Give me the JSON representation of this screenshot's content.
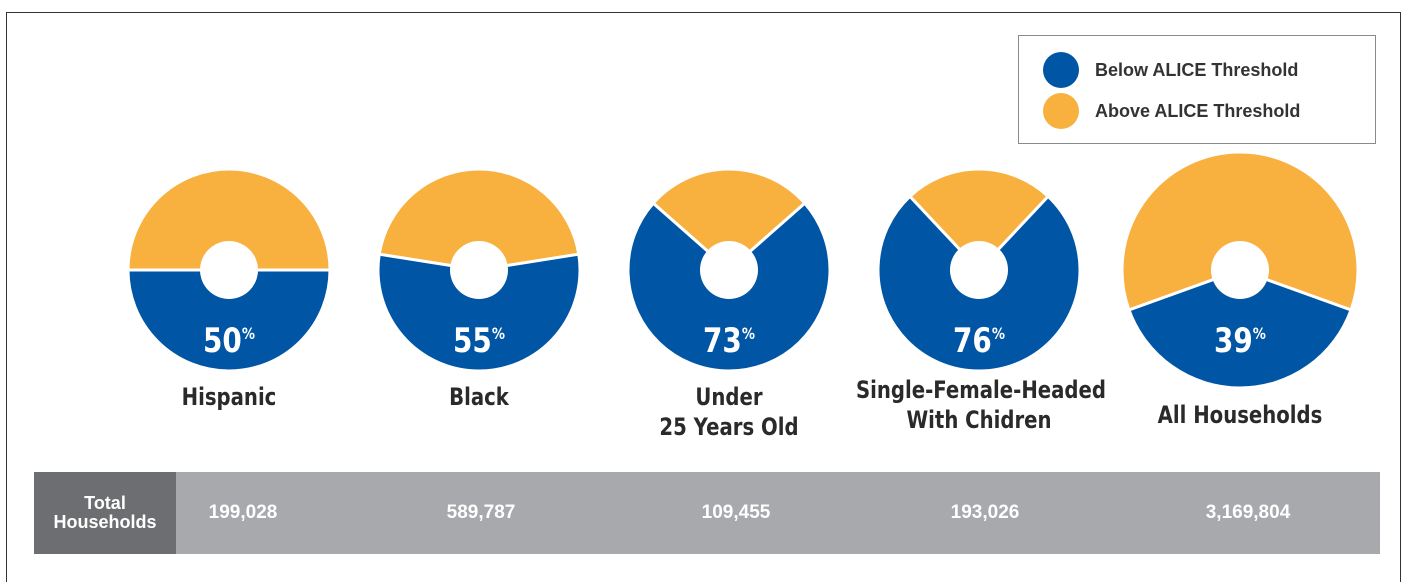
{
  "legend": {
    "below_label": "Below ALICE Threshold",
    "above_label": "Above ALICE Threshold"
  },
  "colors": {
    "below": "#0055a5",
    "above": "#f8b03f"
  },
  "chart_data": {
    "type": "pie",
    "title": "",
    "legend_position": "top-right",
    "series": [
      {
        "name": "Below ALICE Threshold",
        "values": [
          50,
          55,
          73,
          76,
          39
        ]
      },
      {
        "name": "Above ALICE Threshold",
        "values": [
          50,
          45,
          27,
          24,
          61
        ]
      }
    ],
    "categories": [
      "Hispanic",
      "Black",
      "Under 25 Years Old",
      "Single-Female-Headed With Chidren",
      "All Households"
    ],
    "donuts": [
      {
        "label_lines": [
          "Hispanic"
        ],
        "below_pct": 50,
        "pct_text": "50",
        "total": "199,028"
      },
      {
        "label_lines": [
          "Black"
        ],
        "below_pct": 55,
        "pct_text": "55",
        "total": "589,787"
      },
      {
        "label_lines": [
          "Under",
          "25 Years Old"
        ],
        "below_pct": 73,
        "pct_text": "73",
        "total": "109,455"
      },
      {
        "label_lines": [
          "Single-Female-Headed",
          "With Chidren"
        ],
        "below_pct": 76,
        "pct_text": "76",
        "total": "193,026"
      },
      {
        "label_lines": [
          "All Households"
        ],
        "below_pct": 39,
        "pct_text": "39",
        "total": "3,169,804"
      }
    ],
    "pct_suffix": "%"
  },
  "totals": {
    "header_line1": "Total",
    "header_line2": "Households"
  }
}
